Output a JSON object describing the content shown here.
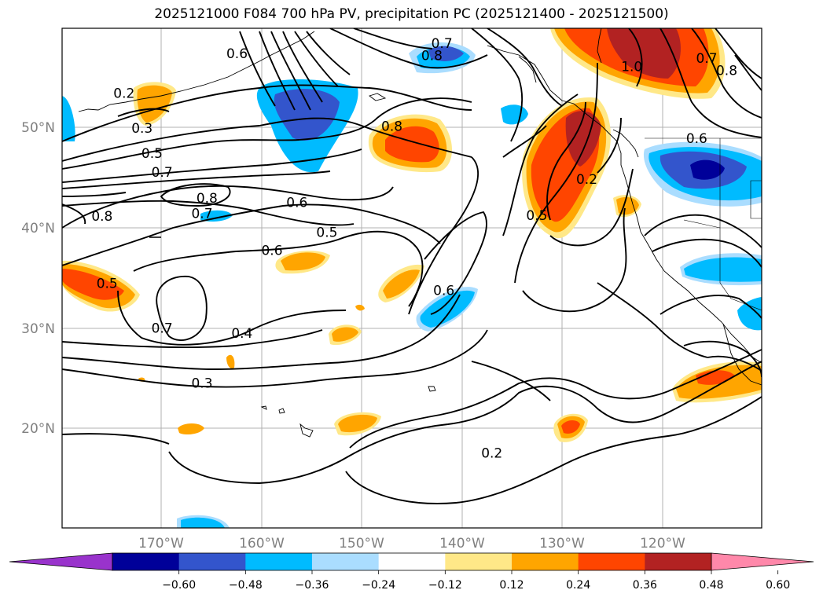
{
  "title": "2025121000 F084 700 hPa PV, precipitation PC (2025121400 - 2025121500)",
  "lat_labels": [
    "50°N",
    "40°N",
    "30°N",
    "20°N"
  ],
  "lon_labels": [
    "170°W",
    "160°W",
    "150°W",
    "140°W",
    "130°W",
    "120°W"
  ],
  "colorbar": {
    "ticks": [
      "−0.60",
      "−0.48",
      "−0.36",
      "−0.24",
      "−0.12",
      "0.12",
      "0.24",
      "0.36",
      "0.48",
      "0.60"
    ],
    "colors": [
      "#9933cc",
      "#000099",
      "#3355cc",
      "#00bbff",
      "#aaddff",
      "#ffffff",
      "#ffe888",
      "#ffa500",
      "#ff4500",
      "#b22222",
      "#ff88aa"
    ]
  },
  "contour_labels": [
    {
      "text": "0.2",
      "lat": 53.5,
      "lon": -173.8
    },
    {
      "text": "0.3",
      "lat": 50.0,
      "lon": -172.0
    },
    {
      "text": "0.5",
      "lat": 47.5,
      "lon": -171.0
    },
    {
      "text": "0.7",
      "lat": 45.6,
      "lon": -170.0
    },
    {
      "text": "0.8",
      "lat": 41.2,
      "lon": -176.0
    },
    {
      "text": "0.8",
      "lat": 43.0,
      "lon": -165.5
    },
    {
      "text": "0.7",
      "lat": 41.5,
      "lon": -166.0
    },
    {
      "text": "0.6",
      "lat": 42.6,
      "lon": -156.5
    },
    {
      "text": "0.5",
      "lat": 39.6,
      "lon": -153.5
    },
    {
      "text": "0.6",
      "lat": 37.8,
      "lon": -159.0
    },
    {
      "text": "0.8",
      "lat": 50.2,
      "lon": -147.0
    },
    {
      "text": "0.7",
      "lat": 58.5,
      "lon": -142.0
    },
    {
      "text": "0.8",
      "lat": 57.3,
      "lon": -143.0
    },
    {
      "text": "1.0",
      "lat": 56.2,
      "lon": -123.0
    },
    {
      "text": "0.6",
      "lat": 57.5,
      "lon": -162.5
    },
    {
      "text": "0.5",
      "lat": 34.5,
      "lon": -175.5
    },
    {
      "text": "0.7",
      "lat": 30.0,
      "lon": -170.0
    },
    {
      "text": "0.4",
      "lat": 29.5,
      "lon": -162.0
    },
    {
      "text": "0.3",
      "lat": 24.5,
      "lon": -166.0
    },
    {
      "text": "0.6",
      "lat": 33.8,
      "lon": -141.8
    },
    {
      "text": "0.5",
      "lat": 41.3,
      "lon": -132.5
    },
    {
      "text": "0.2",
      "lat": 44.9,
      "lon": -127.5
    },
    {
      "text": "0.2",
      "lat": 17.5,
      "lon": -137.0
    },
    {
      "text": "0.6",
      "lat": 49.0,
      "lon": -116.5
    },
    {
      "text": "0.7",
      "lat": 57.0,
      "lon": -115.5
    },
    {
      "text": "0.8",
      "lat": 55.8,
      "lon": -113.5
    }
  ]
}
